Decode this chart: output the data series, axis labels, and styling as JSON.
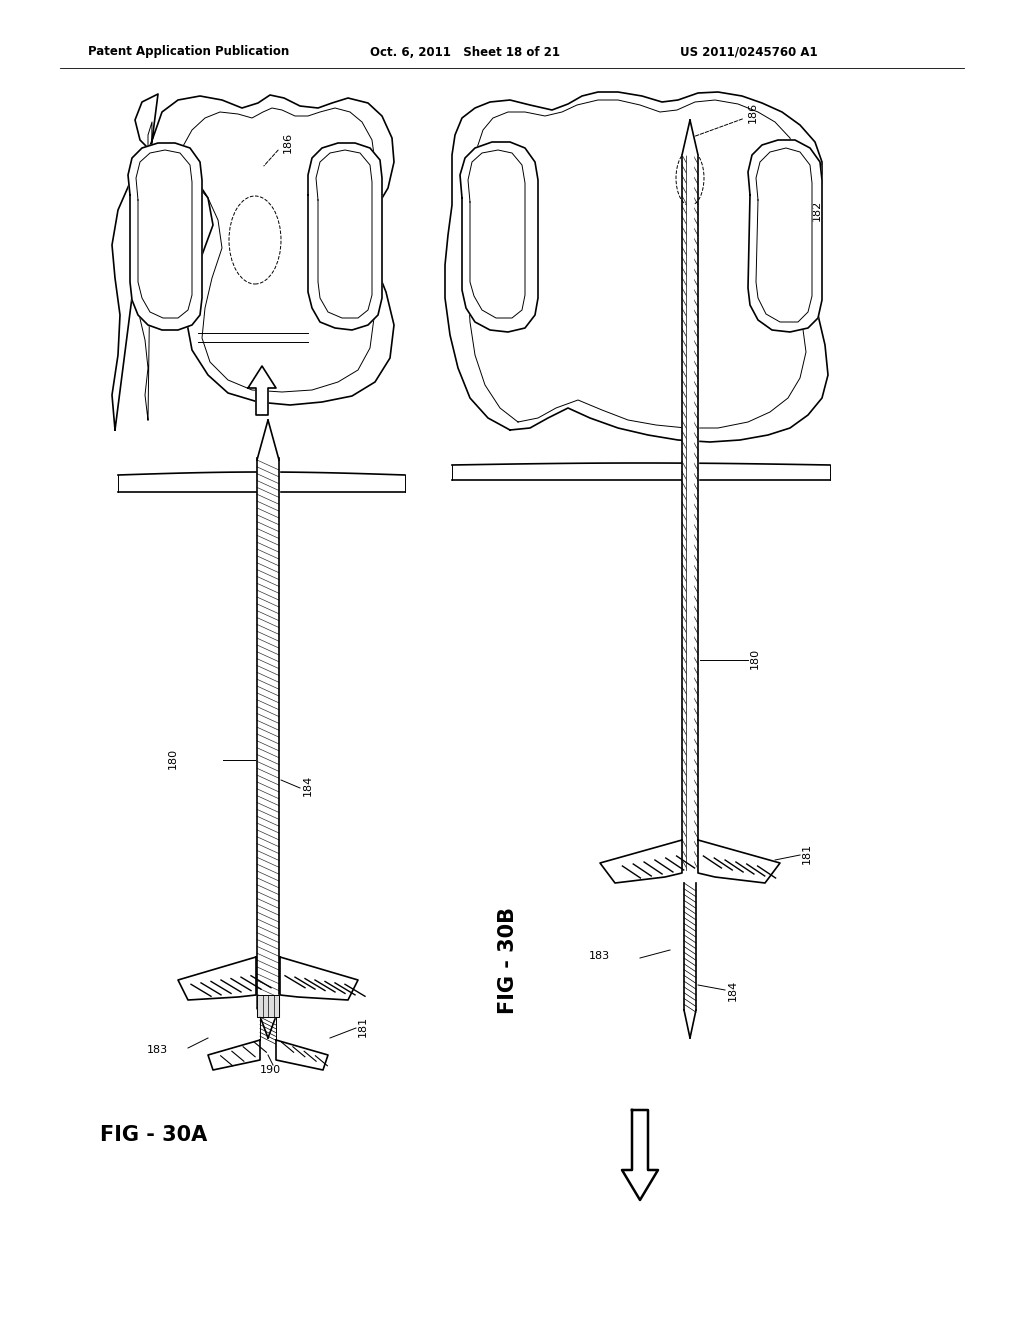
{
  "header_left": "Patent Application Publication",
  "header_mid": "Oct. 6, 2011   Sheet 18 of 21",
  "header_right": "US 2011/0245760 A1",
  "fig_a_label": "FIG - 30A",
  "fig_b_label": "FIG - 30B",
  "bg_color": "#ffffff",
  "line_color": "#000000"
}
